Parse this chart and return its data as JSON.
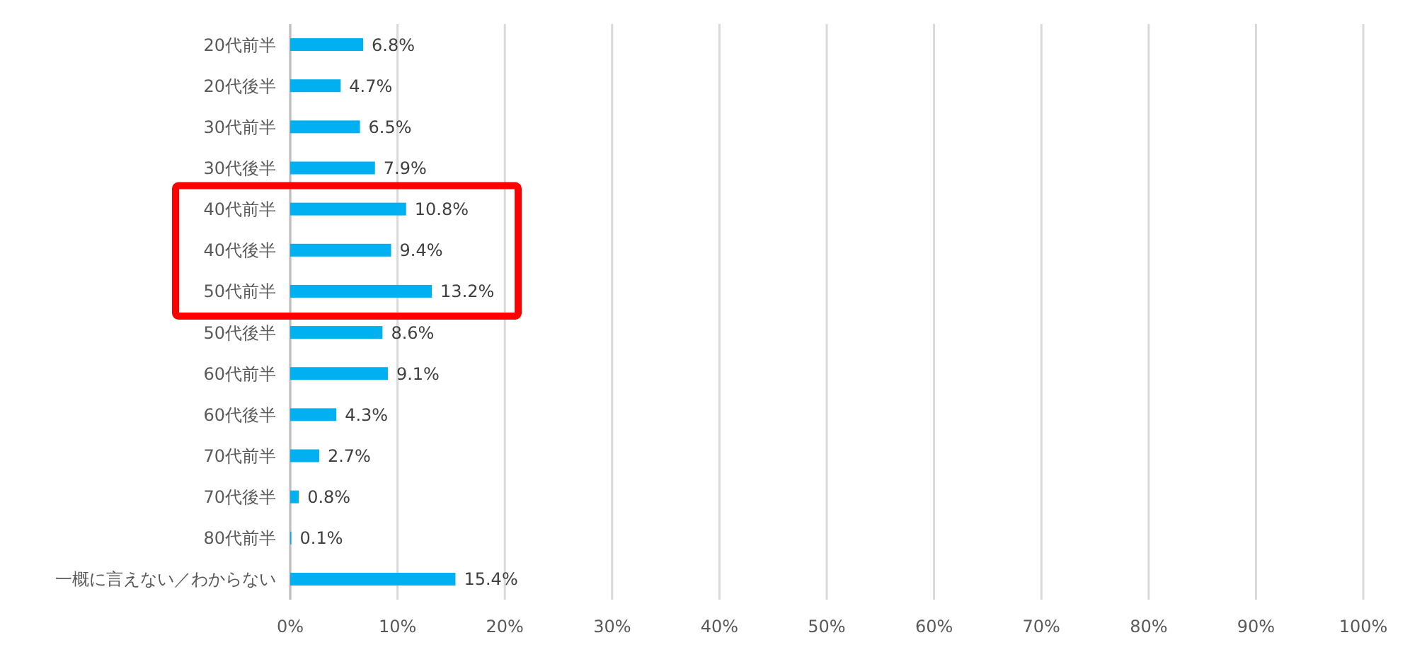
{
  "chart_data": {
    "type": "bar",
    "orientation": "horizontal",
    "categories": [
      "20代前半",
      "20代後半",
      "30代前半",
      "30代後半",
      "40代前半",
      "40代後半",
      "50代前半",
      "50代後半",
      "60代前半",
      "60代後半",
      "70代前半",
      "70代後半",
      "80代前半",
      "一概に言えない／わからない"
    ],
    "values": [
      6.8,
      4.7,
      6.5,
      7.9,
      10.8,
      9.4,
      13.2,
      8.6,
      9.1,
      4.3,
      2.7,
      0.8,
      0.1,
      15.4
    ],
    "value_labels": [
      "6.8%",
      "4.7%",
      "6.5%",
      "7.9%",
      "10.8%",
      "9.4%",
      "13.2%",
      "8.6%",
      "9.1%",
      "4.3%",
      "2.7%",
      "0.8%",
      "0.1%",
      "15.4%"
    ],
    "color": "#00b0f0",
    "xlim": [
      0,
      100
    ],
    "xticks": [
      {
        "value": 0,
        "label": "0%"
      },
      {
        "value": 10,
        "label": "10%"
      },
      {
        "value": 20,
        "label": "20%"
      },
      {
        "value": 30,
        "label": "30%"
      },
      {
        "value": 40,
        "label": "40%"
      },
      {
        "value": 50,
        "label": "50%"
      },
      {
        "value": 60,
        "label": "60%"
      },
      {
        "value": 70,
        "label": "70%"
      },
      {
        "value": 80,
        "label": "80%"
      },
      {
        "value": 90,
        "label": "90%"
      },
      {
        "value": 100,
        "label": "100%"
      }
    ],
    "grid": "x"
  }
}
